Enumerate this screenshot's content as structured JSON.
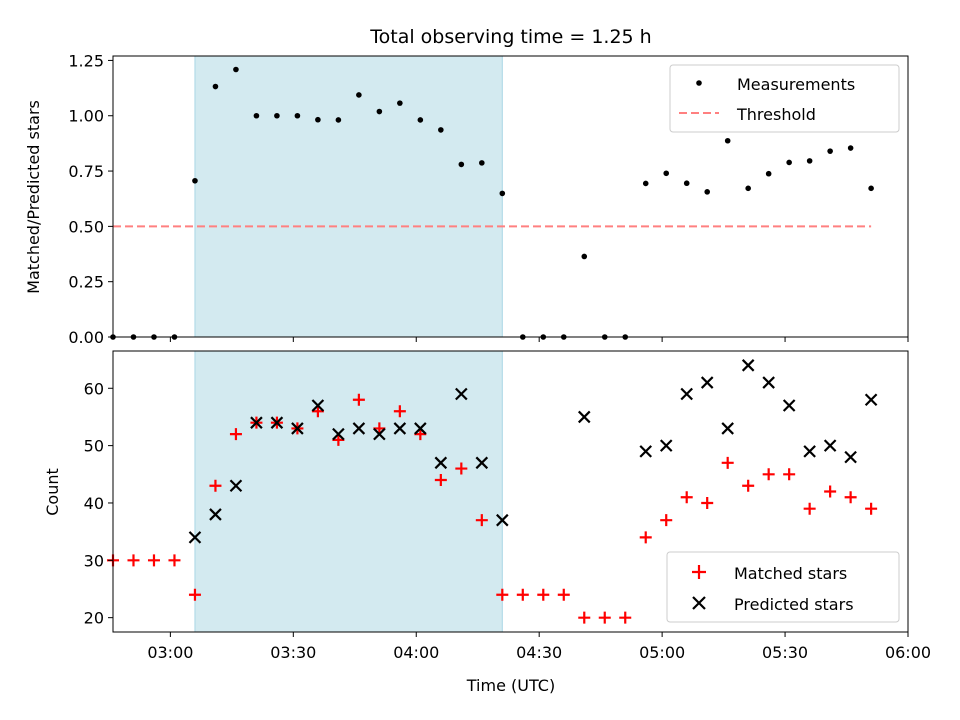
{
  "chart_data": [
    {
      "type": "scatter",
      "title": "Total observing time = 1.25 h",
      "xlabel": "",
      "ylabel": "Matched/Predicted stars",
      "xlim": [
        "02:46",
        "06:00"
      ],
      "ylim": [
        0,
        1.27
      ],
      "yticks": [
        0.0,
        0.25,
        0.5,
        0.75,
        1.0,
        1.25
      ],
      "ytick_labels": [
        "0.00",
        "0.25",
        "0.50",
        "0.75",
        "1.00",
        "1.25"
      ],
      "shaded_region": [
        "03:06",
        "04:21"
      ],
      "shaded_color": "#d3eaf0",
      "legend_position": "upper right",
      "series": [
        {
          "name": "Measurements",
          "marker": "dot",
          "color": "#000000",
          "x": [
            "02:46",
            "02:51",
            "02:56",
            "03:01",
            "03:06",
            "03:11",
            "03:16",
            "03:21",
            "03:26",
            "03:31",
            "03:36",
            "03:41",
            "03:46",
            "03:51",
            "03:56",
            "04:01",
            "04:06",
            "04:11",
            "04:16",
            "04:21",
            "04:26",
            "04:31",
            "04:36",
            "04:41",
            "04:46",
            "04:51",
            "04:56",
            "05:01",
            "05:06",
            "05:11",
            "05:16",
            "05:21",
            "05:26",
            "05:31",
            "05:36",
            "05:41",
            "05:46",
            "05:51"
          ],
          "y": [
            0,
            0,
            0,
            0,
            0.706,
            1.132,
            1.209,
            1.0,
            1.0,
            1.0,
            0.982,
            0.981,
            1.094,
            1.019,
            1.057,
            0.981,
            0.936,
            0.78,
            0.787,
            0.649,
            0,
            0,
            0,
            0.364,
            0,
            0,
            0.694,
            0.74,
            0.695,
            0.656,
            0.887,
            0.672,
            0.738,
            0.789,
            0.796,
            0.84,
            0.854,
            0.672
          ]
        },
        {
          "name": "Threshold",
          "line_style": "dashed",
          "color": "#ff8080",
          "x": [
            "02:46",
            "05:51"
          ],
          "y": [
            0.5,
            0.5
          ]
        }
      ]
    },
    {
      "type": "scatter",
      "title": "",
      "xlabel": "Time (UTC)",
      "ylabel": "Count",
      "xlim": [
        "02:46",
        "06:00"
      ],
      "ylim": [
        17.5,
        66.5
      ],
      "yticks": [
        20,
        30,
        40,
        50,
        60
      ],
      "ytick_labels": [
        "20",
        "30",
        "40",
        "50",
        "60"
      ],
      "xticks": [
        "03:00",
        "03:30",
        "04:00",
        "04:30",
        "05:00",
        "05:30",
        "06:00"
      ],
      "shaded_region": [
        "03:06",
        "04:21"
      ],
      "shaded_color": "#d3eaf0",
      "legend_position": "lower right",
      "series": [
        {
          "name": "Matched stars",
          "marker": "plus",
          "color": "#ff0000",
          "x": [
            "02:46",
            "02:51",
            "02:56",
            "03:01",
            "03:06",
            "03:11",
            "03:16",
            "03:21",
            "03:26",
            "03:31",
            "03:36",
            "03:41",
            "03:46",
            "03:51",
            "03:56",
            "04:01",
            "04:06",
            "04:11",
            "04:16",
            "04:21",
            "04:26",
            "04:31",
            "04:36",
            "04:41",
            "04:46",
            "04:51",
            "04:56",
            "05:01",
            "05:06",
            "05:11",
            "05:16",
            "05:21",
            "05:26",
            "05:31",
            "05:36",
            "05:41",
            "05:46",
            "05:51"
          ],
          "y": [
            30,
            30,
            30,
            30,
            24,
            43,
            52,
            54,
            54,
            53,
            56,
            51,
            58,
            53,
            56,
            52,
            44,
            46,
            37,
            24,
            24,
            24,
            24,
            20,
            20,
            20,
            34,
            37,
            41,
            40,
            47,
            43,
            45,
            45,
            39,
            42,
            41,
            39
          ]
        },
        {
          "name": "Predicted stars",
          "marker": "x",
          "color": "#000000",
          "x": [
            "03:06",
            "03:11",
            "03:16",
            "03:21",
            "03:26",
            "03:31",
            "03:36",
            "03:41",
            "03:46",
            "03:51",
            "03:56",
            "04:01",
            "04:06",
            "04:11",
            "04:16",
            "04:21",
            "04:41",
            "04:56",
            "05:01",
            "05:06",
            "05:11",
            "05:16",
            "05:21",
            "05:26",
            "05:31",
            "05:36",
            "05:41",
            "05:46",
            "05:51"
          ],
          "y": [
            34,
            38,
            43,
            54,
            54,
            53,
            57,
            52,
            53,
            52,
            53,
            53,
            47,
            59,
            47,
            37,
            55,
            49,
            50,
            59,
            61,
            53,
            64,
            61,
            57,
            49,
            50,
            48,
            58
          ]
        }
      ]
    }
  ]
}
